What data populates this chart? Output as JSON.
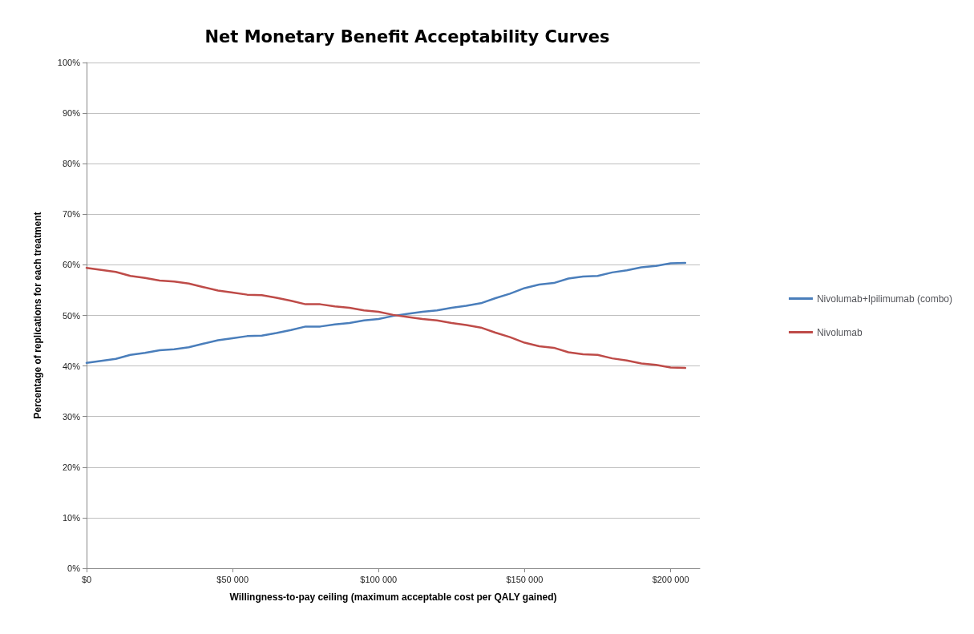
{
  "chart_data": {
    "type": "line",
    "title": "Net Monetary Benefit Acceptability Curves",
    "xlabel": "Willingness-to-pay ceiling (maximum acceptable cost per QALY gained)",
    "ylabel": "Percentage of replications for each treatment",
    "x": [
      0,
      5000,
      10000,
      15000,
      20000,
      25000,
      30000,
      35000,
      40000,
      45000,
      50000,
      55000,
      60000,
      65000,
      70000,
      75000,
      80000,
      85000,
      90000,
      95000,
      100000,
      105000,
      110000,
      115000,
      120000,
      125000,
      130000,
      135000,
      140000,
      145000,
      150000,
      155000,
      160000,
      165000,
      170000,
      175000,
      180000,
      185000,
      190000,
      195000,
      200000,
      205000
    ],
    "series": [
      {
        "name": "Nivolumab+Ipilimumab (combo)",
        "color": "#4a7ebb",
        "values": [
          40.6,
          41,
          41.4,
          42.2,
          42.6,
          43.1,
          43.3,
          43.7,
          44.4,
          45.1,
          45.5,
          45.9,
          46,
          46.5,
          47.1,
          47.8,
          47.8,
          48.2,
          48.5,
          49,
          49.3,
          49.9,
          50.3,
          50.7,
          51,
          51.5,
          51.9,
          52.4,
          53.4,
          54.3,
          55.4,
          56.1,
          56.4,
          57.3,
          57.7,
          57.8,
          58.5,
          58.9,
          59.5,
          59.8,
          60.3,
          60.4
        ]
      },
      {
        "name": "Nivolumab",
        "color": "#be4b48",
        "values": [
          59.4,
          59,
          58.6,
          57.8,
          57.4,
          56.9,
          56.7,
          56.3,
          55.6,
          54.9,
          54.5,
          54.1,
          54,
          53.5,
          52.9,
          52.2,
          52.2,
          51.8,
          51.5,
          51,
          50.7,
          50.1,
          49.7,
          49.3,
          49,
          48.5,
          48.1,
          47.6,
          46.6,
          45.7,
          44.6,
          43.9,
          43.6,
          42.7,
          42.3,
          42.2,
          41.5,
          41.1,
          40.5,
          40.2,
          39.7,
          39.6
        ]
      }
    ],
    "xlim": [
      0,
      210000
    ],
    "xticks": [
      {
        "value": 0,
        "label": "$0"
      },
      {
        "value": 50000,
        "label": "$50 000"
      },
      {
        "value": 100000,
        "label": "$100 000"
      },
      {
        "value": 150000,
        "label": "$150 000"
      },
      {
        "value": 200000,
        "label": "$200 000"
      }
    ],
    "ylim": [
      0,
      100
    ],
    "yticks": [
      {
        "value": 0,
        "label": "0%"
      },
      {
        "value": 10,
        "label": "10%"
      },
      {
        "value": 20,
        "label": "20%"
      },
      {
        "value": 30,
        "label": "30%"
      },
      {
        "value": 40,
        "label": "40%"
      },
      {
        "value": 50,
        "label": "50%"
      },
      {
        "value": 60,
        "label": "60%"
      },
      {
        "value": 70,
        "label": "70%"
      },
      {
        "value": 80,
        "label": "80%"
      },
      {
        "value": 90,
        "label": "90%"
      },
      {
        "value": 100,
        "label": "100%"
      }
    ],
    "grid": "y",
    "legend": "right",
    "marker": "none",
    "line_style": "solid"
  }
}
